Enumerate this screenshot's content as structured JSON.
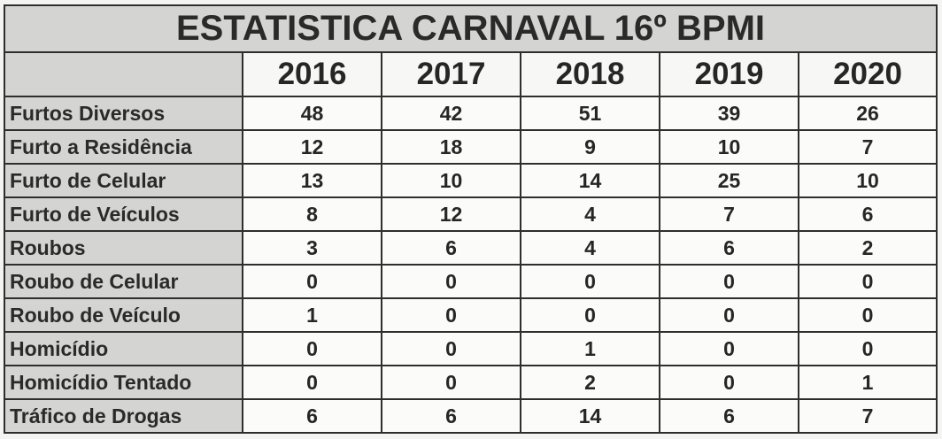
{
  "title": "ESTATISTICA CARNAVAL 16º BPMI",
  "years": [
    "2016",
    "2017",
    "2018",
    "2019",
    "2020"
  ],
  "rows": [
    {
      "label": "Furtos Diversos",
      "values": [
        "48",
        "42",
        "51",
        "39",
        "26"
      ]
    },
    {
      "label": "Furto a Residência",
      "values": [
        "12",
        "18",
        "9",
        "10",
        "7"
      ]
    },
    {
      "label": "Furto de Celular",
      "values": [
        "13",
        "10",
        "14",
        "25",
        "10"
      ]
    },
    {
      "label": "Furto de Veículos",
      "values": [
        "8",
        "12",
        "4",
        "7",
        "6"
      ]
    },
    {
      "label": "Roubos",
      "values": [
        "3",
        "6",
        "4",
        "6",
        "2"
      ]
    },
    {
      "label": "Roubo de Celular",
      "values": [
        "0",
        "0",
        "0",
        "0",
        "0"
      ]
    },
    {
      "label": "Roubo de Veículo",
      "values": [
        "1",
        "0",
        "0",
        "0",
        "0"
      ]
    },
    {
      "label": "Homicídio",
      "values": [
        "0",
        "0",
        "1",
        "0",
        "0"
      ]
    },
    {
      "label": "Homicídio Tentado",
      "values": [
        "0",
        "0",
        "2",
        "0",
        "1"
      ]
    },
    {
      "label": "Tráfico de Drogas",
      "values": [
        "6",
        "6",
        "14",
        "6",
        "7"
      ]
    }
  ],
  "colors": {
    "label_background": "#d4d4d2",
    "cell_background": "#fbfbf9",
    "border": "#2e2e2e",
    "text": "#262626"
  }
}
